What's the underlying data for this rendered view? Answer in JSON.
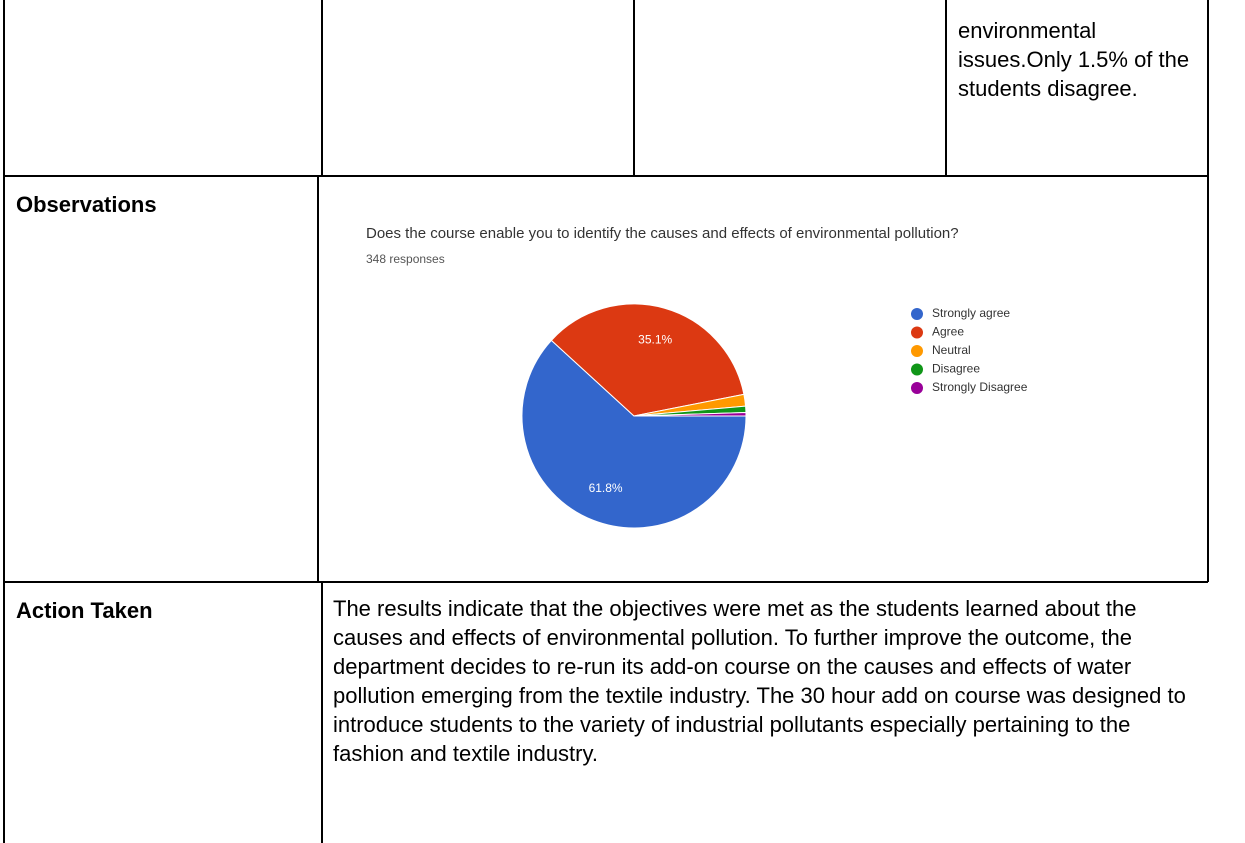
{
  "table": {
    "rows": [
      [
        "",
        "",
        "",
        "environmental issues.Only 1.5% of the students disagree."
      ],
      [
        "Observations"
      ],
      [
        "Action Taken",
        "The results indicate that the objectives were met as the students learned about the causes and effects of environmental pollution. To further improve the outcome, the department decides to re-run its add-on course on the causes and effects of water pollution emerging from the textile industry. The 30 hour add on course was designed to introduce students to the variety of industrial pollutants especially pertaining to the fashion and textile industry."
      ]
    ]
  },
  "chart_data": {
    "type": "pie",
    "title": "Does the course enable you to identify the causes and effects of environmental pollution?",
    "subtitle": "348 responses",
    "categories": [
      "Strongly agree",
      "Agree",
      "Neutral",
      "Disagree",
      "Strongly Disagree"
    ],
    "values": [
      61.8,
      35.1,
      1.7,
      0.9,
      0.5
    ],
    "value_labels": [
      "61.8%",
      "35.1%",
      null,
      null,
      null
    ],
    "colors": [
      "#3366cc",
      "#dc3912",
      "#ff9900",
      "#109618",
      "#990099"
    ],
    "legend": "right"
  }
}
